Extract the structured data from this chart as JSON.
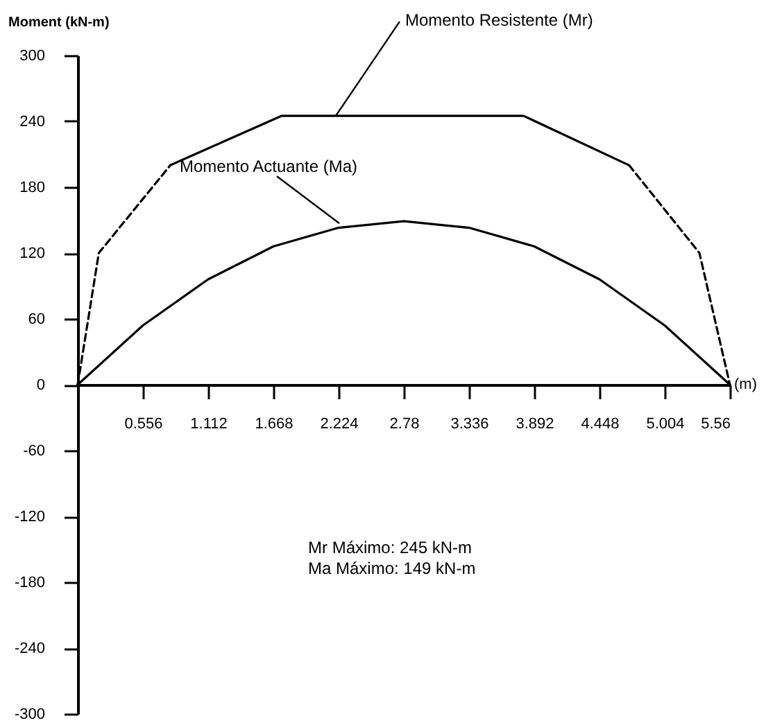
{
  "chart_data": {
    "type": "line",
    "ylabel": "Moment (kN-m)",
    "xlabel": "(m)",
    "xlim": [
      0,
      5.56
    ],
    "xticks": [
      0.556,
      1.112,
      1.668,
      2.224,
      2.78,
      3.336,
      3.892,
      4.448,
      5.004,
      5.56
    ],
    "ylim": [
      -300,
      300
    ],
    "yticks": [
      -300,
      -240,
      -180,
      -120,
      -60,
      0,
      60,
      120,
      180,
      240,
      300
    ],
    "grid": false,
    "marker": "none",
    "series": [
      {
        "color": "#000000",
        "line_style": "solid",
        "x": [
          0.79,
          1.74,
          3.8,
          4.7
        ],
        "values": [
          200,
          245,
          245,
          200
        ]
      },
      {
        "color": "#000000",
        "line_style": "dashed",
        "x": [
          0,
          0.18,
          0.79,
          2.78,
          4.7,
          5.3,
          5.56
        ],
        "values": [
          0,
          120,
          200,
          null,
          200,
          120,
          0
        ]
      },
      {
        "color": "#000000",
        "line_style": "solid",
        "x": [
          0,
          0.556,
          1.112,
          1.668,
          2.224,
          2.78,
          3.336,
          3.892,
          4.448,
          5.004,
          5.56
        ],
        "values": [
          0,
          54,
          96,
          126,
          143,
          149,
          143,
          126,
          96,
          54,
          0
        ]
      }
    ],
    "annotations": [
      {
        "text": "Momento Resistente (Mr)",
        "x": 2.2,
        "y": 245
      },
      {
        "text": "Momento Actuante (Ma)",
        "x": 2.23,
        "y": 147
      },
      "Mr Máximo: 245 kN-m",
      "Ma Máximo: 149 kN-m"
    ]
  }
}
